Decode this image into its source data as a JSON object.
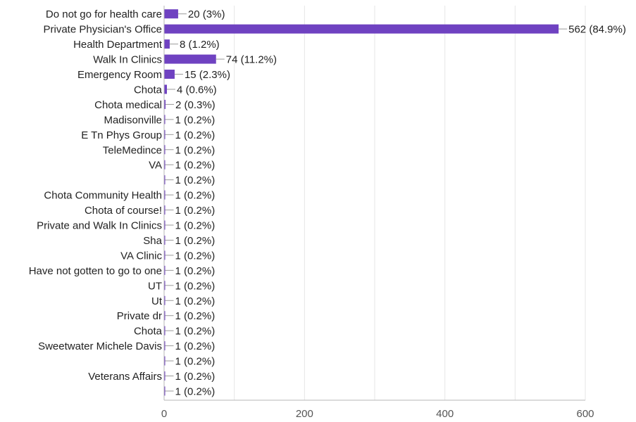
{
  "colors": {
    "bar": "#6f42c1",
    "grid": "#e6e6e6",
    "axis": "#b7b7b7",
    "leader": "#9a9a9a",
    "text": "#222222",
    "tick_text": "#555555"
  },
  "chart_data": {
    "type": "bar",
    "orientation": "horizontal",
    "title": "",
    "xlabel": "",
    "ylabel": "",
    "xlim": [
      0,
      600
    ],
    "x_ticks": [
      0,
      200,
      400,
      600
    ],
    "grid": true,
    "categories": [
      "Do not go for health care",
      "Private Physician's Office",
      "Health Department",
      "Walk In Clinics",
      "Emergency Room",
      "Chota",
      "Chota medical",
      "Madisonville",
      "E Tn Phys Group",
      "TeleMedince",
      "VA",
      "",
      "Chota Community Health",
      "Chota of course!",
      "Private and Walk In Clinics",
      "Sha",
      "VA Clinic",
      "Have not gotten to go to one",
      "UT",
      "Ut",
      "Private dr",
      "Chota",
      "Sweetwater Michele Davis",
      "",
      "Veterans Affairs",
      ""
    ],
    "values": [
      20,
      562,
      8,
      74,
      15,
      4,
      2,
      1,
      1,
      1,
      1,
      1,
      1,
      1,
      1,
      1,
      1,
      1,
      1,
      1,
      1,
      1,
      1,
      1,
      1,
      1
    ],
    "data_labels": [
      "20 (3%)",
      "562 (84.9%)",
      "8 (1.2%)",
      "74 (11.2%)",
      "15 (2.3%)",
      "4 (0.6%)",
      "2 (0.3%)",
      "1 (0.2%)",
      "1 (0.2%)",
      "1 (0.2%)",
      "1 (0.2%)",
      "1 (0.2%)",
      "1 (0.2%)",
      "1 (0.2%)",
      "1 (0.2%)",
      "1 (0.2%)",
      "1 (0.2%)",
      "1 (0.2%)",
      "1 (0.2%)",
      "1 (0.2%)",
      "1 (0.2%)",
      "1 (0.2%)",
      "1 (0.2%)",
      "1 (0.2%)",
      "1 (0.2%)",
      "1 (0.2%)"
    ]
  }
}
